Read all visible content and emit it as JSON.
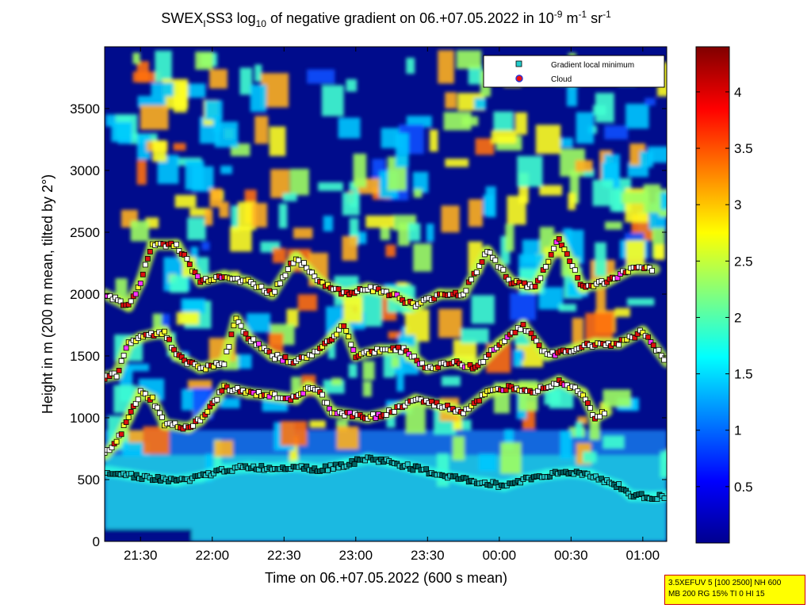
{
  "chart_data": {
    "type": "heatmap",
    "title": {
      "base": "SWEX",
      "sub1": "I",
      "mid": "SS3 log",
      "sub2": "10",
      "rest": " of negative gradient on 06.+07.05.2022 in 10",
      "sup1": "-9",
      "unit1": " m",
      "sup2": "-1",
      "unit2": " sr",
      "sup3": "-1"
    },
    "xlabel": "Time on 06.+07.05.2022 (600 s mean)",
    "ylabel": "Height in m (200 m mean, tilted by 2°)",
    "x_ticks": [
      "21:30",
      "22:00",
      "22:30",
      "23:00",
      "23:30",
      "00:00",
      "00:30",
      "01:00"
    ],
    "x_range_minutes_from_21_00": [
      15,
      250
    ],
    "x_ticks_minutes_from_21_00": [
      30,
      60,
      90,
      120,
      150,
      180,
      210,
      240
    ],
    "y_ticks": [
      0,
      500,
      1000,
      1500,
      2000,
      2500,
      3000,
      3500
    ],
    "ylim": [
      0,
      4000
    ],
    "colorbar": {
      "ticks": [
        0.5,
        1,
        1.5,
        2,
        2.5,
        3,
        3.5,
        4
      ],
      "range": [
        0,
        4.4
      ],
      "colormap": "jet"
    },
    "legend": {
      "position": "top-right",
      "entries": [
        {
          "label": "Gradient local minimum",
          "marker": "square",
          "color": "#22cccc"
        },
        {
          "label": "Cloud",
          "marker": "circle",
          "color": "#ee1111"
        }
      ]
    },
    "layers": [
      {
        "name": "low",
        "points": [
          [
            15,
            570
          ],
          [
            25,
            540
          ],
          [
            35,
            510
          ],
          [
            45,
            490
          ],
          [
            55,
            520
          ],
          [
            65,
            580
          ],
          [
            75,
            600
          ],
          [
            85,
            590
          ],
          [
            95,
            610
          ],
          [
            105,
            580
          ],
          [
            115,
            620
          ],
          [
            125,
            670
          ],
          [
            135,
            640
          ],
          [
            145,
            590
          ],
          [
            155,
            540
          ],
          [
            165,
            500
          ],
          [
            175,
            470
          ],
          [
            182,
            450
          ],
          [
            190,
            500
          ],
          [
            200,
            540
          ],
          [
            210,
            560
          ],
          [
            218,
            540
          ],
          [
            225,
            480
          ],
          [
            230,
            450
          ],
          [
            235,
            370
          ],
          [
            245,
            360
          ],
          [
            250,
            370
          ]
        ],
        "color": "#7fe0ff"
      },
      {
        "name": "layer2",
        "points": [
          [
            15,
            700
          ],
          [
            20,
            800
          ],
          [
            25,
            1000
          ],
          [
            30,
            1200
          ],
          [
            35,
            1150
          ],
          [
            40,
            950
          ],
          [
            50,
            920
          ],
          [
            55,
            980
          ],
          [
            60,
            1100
          ],
          [
            65,
            1250
          ],
          [
            75,
            1200
          ],
          [
            85,
            1180
          ],
          [
            95,
            1150
          ],
          [
            100,
            1250
          ],
          [
            105,
            1200
          ],
          [
            110,
            1050
          ],
          [
            125,
            1000
          ],
          [
            135,
            1050
          ],
          [
            145,
            1150
          ],
          [
            155,
            1100
          ],
          [
            165,
            1050
          ],
          [
            175,
            1200
          ],
          [
            185,
            1250
          ],
          [
            195,
            1220
          ],
          [
            205,
            1300
          ],
          [
            215,
            1200
          ],
          [
            220,
            1000
          ],
          [
            225,
            1050
          ]
        ],
        "color": "#ffffff"
      },
      {
        "name": "layer3",
        "points": [
          [
            15,
            1330
          ],
          [
            20,
            1350
          ],
          [
            25,
            1600
          ],
          [
            30,
            1650
          ],
          [
            40,
            1700
          ],
          [
            45,
            1500
          ],
          [
            55,
            1400
          ],
          [
            65,
            1450
          ],
          [
            70,
            1800
          ],
          [
            75,
            1650
          ],
          [
            85,
            1500
          ],
          [
            95,
            1450
          ],
          [
            105,
            1550
          ],
          [
            110,
            1650
          ],
          [
            115,
            1750
          ],
          [
            120,
            1500
          ],
          [
            130,
            1550
          ],
          [
            140,
            1550
          ],
          [
            150,
            1400
          ],
          [
            160,
            1450
          ],
          [
            170,
            1400
          ],
          [
            180,
            1600
          ],
          [
            190,
            1750
          ],
          [
            200,
            1500
          ],
          [
            210,
            1550
          ],
          [
            220,
            1600
          ],
          [
            230,
            1600
          ],
          [
            240,
            1700
          ],
          [
            250,
            1450
          ]
        ],
        "color": "#ffffff"
      },
      {
        "name": "layer4",
        "points": [
          [
            15,
            2000
          ],
          [
            25,
            1900
          ],
          [
            30,
            2100
          ],
          [
            35,
            2400
          ],
          [
            45,
            2400
          ],
          [
            55,
            2100
          ],
          [
            65,
            2150
          ],
          [
            75,
            2100
          ],
          [
            85,
            2000
          ],
          [
            95,
            2300
          ],
          [
            105,
            2100
          ],
          [
            115,
            2000
          ],
          [
            125,
            2050
          ],
          [
            135,
            2000
          ],
          [
            145,
            1900
          ],
          [
            155,
            2000
          ],
          [
            165,
            2000
          ],
          [
            175,
            2350
          ],
          [
            185,
            2100
          ],
          [
            195,
            2050
          ],
          [
            205,
            2450
          ],
          [
            215,
            2050
          ],
          [
            225,
            2100
          ],
          [
            235,
            2200
          ],
          [
            245,
            2200
          ]
        ],
        "color": "#ffff33"
      }
    ]
  },
  "info_box": {
    "line1": "3.5XEFUV 5 [100 2500] NH 600",
    "line2": "MB 200 RG 15% TI 0 HI 15"
  }
}
